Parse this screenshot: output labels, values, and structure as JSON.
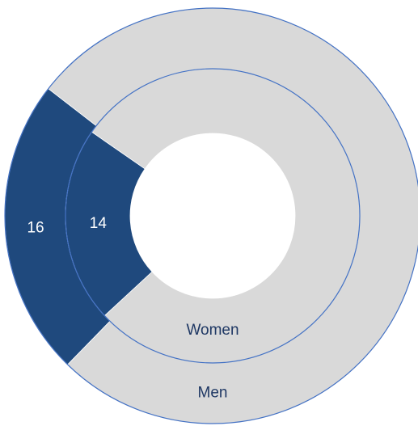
{
  "chart_data": {
    "type": "donut",
    "series": [
      {
        "name": "Men",
        "values": [
          16,
          53
        ],
        "colors": [
          "#1f497d",
          "#d9d9d9"
        ]
      },
      {
        "name": "Women",
        "values": [
          14,
          51
        ],
        "colors": [
          "#1f497d",
          "#d9d9d9"
        ]
      }
    ]
  }
}
